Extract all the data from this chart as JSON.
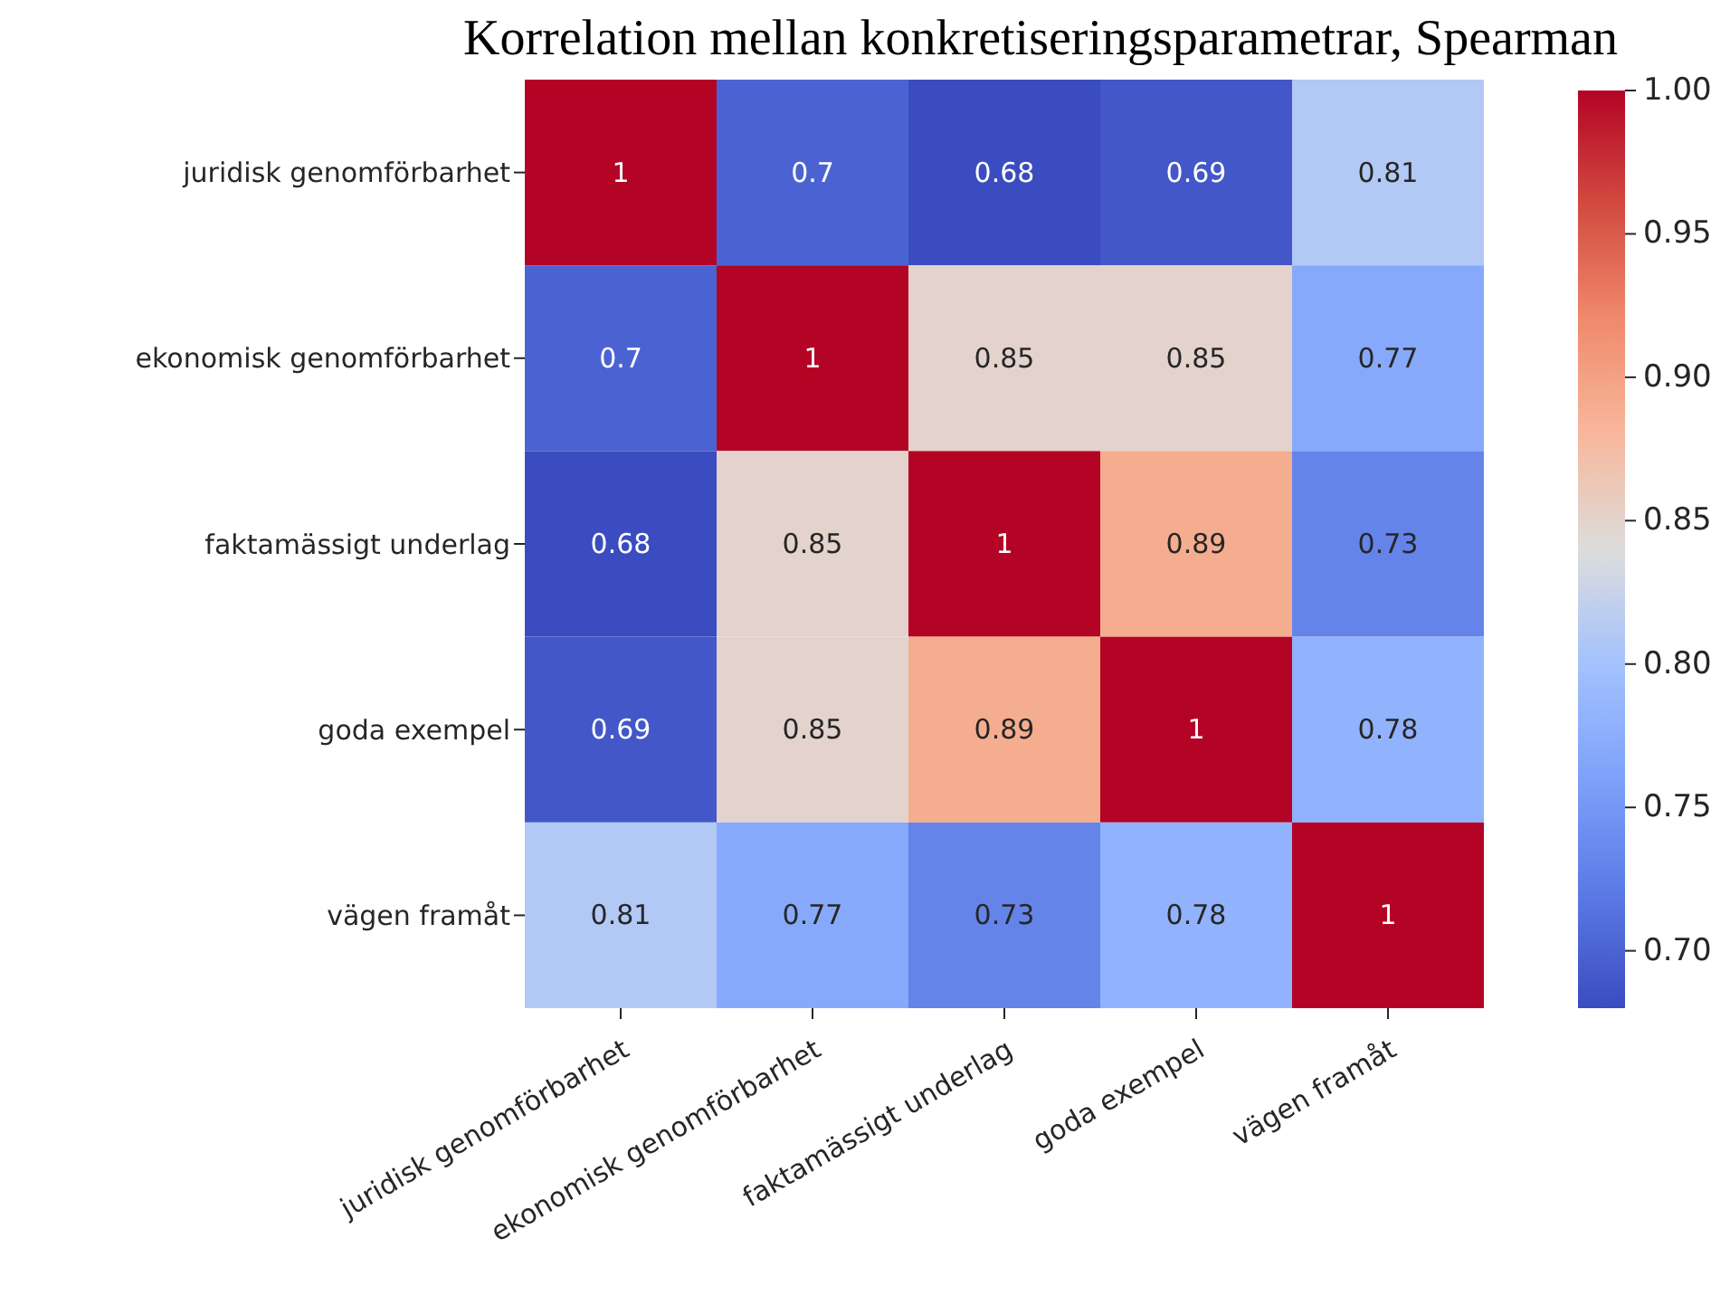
{
  "chart_data": {
    "type": "heatmap",
    "title": "Korrelation mellan konkretiseringsparametrar, Spearman",
    "categories": [
      "juridisk genomförbarhet",
      "ekonomisk genomförbarhet",
      "faktamässigt underlag",
      "goda exempel",
      "vägen framåt"
    ],
    "y_categories": [
      "juridisk genomförbarhet",
      "ekonomisk genomförbarhet",
      "faktamässigt underlag",
      "goda exempel",
      "vägen framåt"
    ],
    "cells": [
      [
        1,
        0.7,
        0.68,
        0.69,
        0.81
      ],
      [
        0.7,
        1,
        0.85,
        0.85,
        0.77
      ],
      [
        0.68,
        0.85,
        1,
        0.89,
        0.73
      ],
      [
        0.69,
        0.85,
        0.89,
        1,
        0.78
      ],
      [
        0.81,
        0.77,
        0.73,
        0.78,
        1
      ]
    ],
    "data_labels": true,
    "clim": [
      0.68,
      1.0
    ],
    "cticks": [
      {
        "value": 0.7,
        "label": "0.70"
      },
      {
        "value": 0.75,
        "label": "0.75"
      },
      {
        "value": 0.8,
        "label": "0.80"
      },
      {
        "value": 0.85,
        "label": "0.85"
      },
      {
        "value": 0.9,
        "label": "0.90"
      },
      {
        "value": 0.95,
        "label": "0.95"
      },
      {
        "value": 1.0,
        "label": "1.00"
      }
    ]
  }
}
